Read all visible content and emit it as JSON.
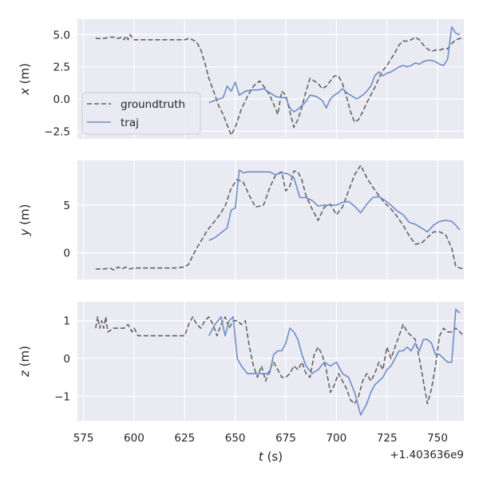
{
  "x_label_italic": "t",
  "x_label_unit": " (s)",
  "x_offset_text": "+1.403636e9",
  "x_ticks": [
    575,
    600,
    625,
    650,
    675,
    700,
    725,
    750
  ],
  "x_tick_labels": [
    "575",
    "600",
    "625",
    "650",
    "675",
    "700",
    "725",
    "750"
  ],
  "xlim": [
    572,
    763
  ],
  "colors": {
    "background": "#eaeaf2",
    "grid": "#ffffff",
    "groundtruth": "#646464",
    "traj": "#6d8ec7"
  },
  "legend": {
    "position": "lower left of top panel",
    "items": [
      {
        "key": "groundtruth",
        "label": "groundtruth",
        "style": "dashed"
      },
      {
        "key": "traj",
        "label": "traj",
        "style": "solid"
      }
    ]
  },
  "chart_data": [
    {
      "type": "line",
      "panel": "x",
      "ylabel_italic": "x",
      "ylabel_unit": " (m)",
      "ylim": [
        -3.1,
        6.2
      ],
      "yticks": [
        -2.5,
        0.0,
        2.5,
        5.0
      ],
      "ytick_labels": [
        "−2.5",
        "0.0",
        "2.5",
        "5.0"
      ],
      "series": [
        {
          "name": "groundtruth",
          "style": "dashed",
          "x": [
            581,
            583,
            585,
            588,
            590,
            592,
            594,
            595,
            596,
            597,
            598,
            600,
            605,
            610,
            615,
            620,
            625,
            627,
            629,
            631,
            633,
            635,
            637,
            640,
            642,
            644,
            646,
            648,
            650,
            653,
            656,
            659,
            662,
            665,
            667,
            669,
            671,
            673,
            675,
            677,
            679,
            681,
            683,
            685,
            687,
            689,
            691,
            693,
            695,
            697,
            699,
            701,
            703,
            705,
            707,
            709,
            711,
            713,
            715,
            717,
            719,
            721,
            723,
            725,
            727,
            729,
            731,
            733,
            735,
            737,
            739,
            741,
            743,
            745,
            747,
            749,
            751,
            753,
            755,
            757,
            759,
            761,
            763
          ],
          "y": [
            4.7,
            4.7,
            4.7,
            4.8,
            4.8,
            4.7,
            4.8,
            4.6,
            4.9,
            4.6,
            5.0,
            4.6,
            4.6,
            4.6,
            4.6,
            4.6,
            4.6,
            4.7,
            4.6,
            4.4,
            3.8,
            2.8,
            1.6,
            0.3,
            -0.6,
            -1.2,
            -2.0,
            -2.8,
            -2.2,
            -0.8,
            0.2,
            1.0,
            1.4,
            0.8,
            0.3,
            -0.4,
            -1.2,
            0.6,
            0.3,
            -1.0,
            -2.2,
            -1.6,
            -0.6,
            0.6,
            1.6,
            1.4,
            1.2,
            0.8,
            1.0,
            1.4,
            1.8,
            1.8,
            1.2,
            0.2,
            -1.0,
            -1.8,
            -1.6,
            -1.0,
            -0.3,
            0.3,
            0.9,
            1.6,
            2.2,
            2.6,
            3.1,
            3.6,
            4.2,
            4.5,
            4.5,
            4.6,
            4.8,
            4.6,
            4.2,
            3.9,
            3.7,
            3.8,
            3.8,
            3.9,
            3.9,
            4.3,
            4.6,
            4.7,
            4.7
          ]
        },
        {
          "name": "traj",
          "style": "solid",
          "x": [
            637,
            640,
            642,
            644,
            646,
            648,
            650,
            652,
            655,
            658,
            661,
            664,
            667,
            670,
            673,
            675,
            677,
            679,
            681,
            683,
            685,
            687,
            690,
            693,
            695,
            697,
            699,
            701,
            703,
            705,
            707,
            710,
            713,
            715,
            717,
            719,
            721,
            723,
            725,
            727,
            729,
            731,
            733,
            735,
            737,
            739,
            741,
            743,
            745,
            747,
            749,
            751,
            753,
            755,
            757,
            759,
            761
          ],
          "y": [
            -0.3,
            -0.1,
            0.0,
            0.1,
            1.0,
            0.6,
            1.3,
            0.3,
            0.6,
            0.7,
            0.7,
            0.8,
            0.5,
            0.2,
            0.1,
            0.1,
            -0.7,
            -1.0,
            -0.8,
            -0.5,
            -0.2,
            0.3,
            0.2,
            -0.1,
            -0.7,
            0.0,
            0.3,
            0.5,
            0.8,
            0.5,
            0.3,
            0.0,
            0.3,
            0.6,
            1.0,
            1.8,
            2.1,
            1.8,
            2.0,
            2.1,
            2.3,
            2.5,
            2.6,
            2.5,
            2.6,
            2.8,
            2.7,
            2.9,
            3.0,
            3.0,
            2.9,
            2.7,
            2.6,
            3.1,
            5.6,
            5.1,
            5.0
          ]
        }
      ]
    },
    {
      "type": "line",
      "panel": "y",
      "ylabel_italic": "y",
      "ylabel_unit": " (m)",
      "ylim": [
        -2.8,
        9.7
      ],
      "yticks": [
        0,
        5
      ],
      "ytick_labels": [
        "0",
        "5"
      ],
      "series": [
        {
          "name": "groundtruth",
          "style": "dashed",
          "x": [
            581,
            585,
            588,
            590,
            592,
            594,
            596,
            598,
            600,
            605,
            610,
            615,
            620,
            625,
            627,
            629,
            631,
            633,
            636,
            639,
            642,
            645,
            648,
            651,
            654,
            657,
            660,
            664,
            667,
            670,
            673,
            675,
            677,
            679,
            681,
            683,
            685,
            688,
            691,
            694,
            697,
            700,
            703,
            706,
            709,
            712,
            715,
            718,
            721,
            724,
            727,
            730,
            733,
            736,
            739,
            742,
            745,
            748,
            751,
            754,
            757,
            759,
            761,
            763
          ],
          "y": [
            -1.7,
            -1.7,
            -1.6,
            -1.8,
            -1.5,
            -1.7,
            -1.5,
            -1.7,
            -1.6,
            -1.6,
            -1.6,
            -1.6,
            -1.6,
            -1.5,
            -1.2,
            -0.3,
            0.5,
            1.2,
            2.3,
            3.1,
            3.9,
            4.9,
            6.8,
            7.7,
            7.4,
            6.0,
            4.8,
            5.0,
            6.8,
            8.2,
            8.5,
            6.5,
            7.0,
            8.6,
            8.5,
            7.6,
            6.0,
            4.6,
            3.4,
            4.8,
            5.1,
            4.0,
            4.8,
            6.5,
            8.2,
            9.2,
            7.9,
            6.9,
            6.0,
            5.2,
            4.6,
            3.8,
            2.9,
            1.8,
            0.9,
            1.0,
            1.6,
            2.2,
            2.2,
            1.9,
            0.5,
            -1.4,
            -1.6,
            -1.7
          ]
        },
        {
          "name": "traj",
          "style": "solid",
          "x": [
            637,
            640,
            643,
            646,
            648,
            650,
            652,
            654,
            656,
            658,
            661,
            664,
            667,
            670,
            673,
            676,
            679,
            682,
            685,
            688,
            691,
            694,
            697,
            700,
            703,
            706,
            709,
            712,
            715,
            718,
            721,
            724,
            727,
            730,
            733,
            736,
            739,
            742,
            745,
            748,
            751,
            754,
            757,
            759,
            761
          ],
          "y": [
            1.3,
            1.6,
            2.1,
            2.6,
            4.5,
            4.7,
            8.7,
            8.4,
            8.5,
            8.5,
            8.5,
            8.5,
            8.5,
            8.2,
            8.4,
            8.3,
            7.9,
            5.8,
            5.8,
            5.5,
            4.9,
            5.0,
            5.0,
            5.0,
            5.3,
            5.4,
            4.9,
            4.2,
            5.1,
            5.8,
            5.9,
            5.5,
            5.0,
            4.4,
            4.0,
            3.2,
            3.0,
            2.6,
            2.2,
            2.9,
            3.3,
            3.4,
            3.3,
            2.9,
            2.4
          ]
        }
      ]
    },
    {
      "type": "line",
      "panel": "z",
      "ylabel_italic": "z",
      "ylabel_unit": " (m)",
      "ylim": [
        -1.65,
        1.5
      ],
      "yticks": [
        -1,
        0,
        1
      ],
      "ytick_labels": [
        "−1",
        "0",
        "1"
      ],
      "series": [
        {
          "name": "groundtruth",
          "style": "dashed",
          "x": [
            581,
            582,
            583,
            584,
            585,
            586,
            587,
            590,
            593,
            595,
            597,
            599,
            600,
            602,
            605,
            610,
            615,
            620,
            625,
            627,
            629,
            631,
            633,
            635,
            637,
            639,
            641,
            643,
            645,
            647,
            649,
            651,
            653,
            655,
            657,
            659,
            661,
            663,
            665,
            667,
            669,
            671,
            673,
            675,
            677,
            679,
            681,
            683,
            685,
            687,
            689,
            691,
            693,
            695,
            697,
            699,
            701,
            703,
            705,
            707,
            709,
            711,
            713,
            715,
            717,
            719,
            721,
            723,
            725,
            727,
            729,
            731,
            733,
            735,
            737,
            739,
            741,
            743,
            745,
            747,
            749,
            751,
            753,
            755,
            757,
            759,
            761,
            763
          ],
          "y": [
            0.8,
            1.1,
            0.8,
            1.0,
            0.8,
            1.1,
            0.7,
            0.8,
            0.8,
            0.8,
            0.9,
            0.7,
            0.8,
            0.6,
            0.6,
            0.6,
            0.6,
            0.6,
            0.6,
            0.9,
            1.1,
            0.9,
            0.8,
            1.0,
            1.1,
            0.9,
            0.6,
            0.9,
            1.1,
            0.8,
            1.0,
            1.0,
            0.9,
            1.0,
            0.3,
            -0.2,
            -0.5,
            -0.2,
            -0.6,
            -0.3,
            -0.1,
            -0.3,
            -0.5,
            -0.5,
            -0.4,
            -0.2,
            -0.3,
            -0.1,
            -0.4,
            -0.5,
            0.1,
            0.3,
            0.1,
            -0.3,
            -0.9,
            -0.7,
            -0.4,
            -0.6,
            -0.8,
            -1.1,
            -1.2,
            -1.0,
            -0.6,
            -0.4,
            -0.6,
            -0.4,
            -0.1,
            -0.3,
            0.3,
            0.0,
            0.3,
            0.6,
            0.9,
            0.7,
            0.6,
            0.5,
            0.0,
            -0.6,
            -1.2,
            -0.8,
            -0.2,
            0.6,
            0.8,
            0.7,
            0.7,
            0.8,
            0.7,
            0.6
          ]
        },
        {
          "name": "traj",
          "style": "solid",
          "x": [
            637,
            640,
            643,
            645,
            647,
            649,
            651,
            653,
            656,
            659,
            662,
            665,
            667,
            669,
            671,
            673,
            675,
            677,
            679,
            681,
            683,
            685,
            688,
            691,
            694,
            697,
            700,
            703,
            706,
            709,
            712,
            715,
            717,
            719,
            721,
            723,
            725,
            727,
            729,
            731,
            733,
            735,
            737,
            739,
            741,
            743,
            745,
            747,
            749,
            751,
            753,
            755,
            757,
            759,
            761
          ],
          "y": [
            0.6,
            0.9,
            1.1,
            0.6,
            1.0,
            1.1,
            0.0,
            -0.2,
            -0.4,
            -0.4,
            -0.4,
            -0.4,
            -0.4,
            0.1,
            0.2,
            0.2,
            0.4,
            0.8,
            0.7,
            0.5,
            0.1,
            -0.2,
            -0.4,
            -0.3,
            -0.1,
            -0.2,
            -0.1,
            -0.4,
            -0.5,
            -0.9,
            -1.5,
            -1.2,
            -0.9,
            -0.7,
            -0.6,
            -0.5,
            -0.3,
            -0.2,
            0.0,
            0.2,
            0.2,
            0.3,
            0.2,
            0.4,
            0.2,
            0.5,
            0.5,
            0.4,
            0.1,
            0.1,
            0.0,
            -0.1,
            -0.1,
            1.3,
            1.2
          ]
        }
      ]
    }
  ]
}
